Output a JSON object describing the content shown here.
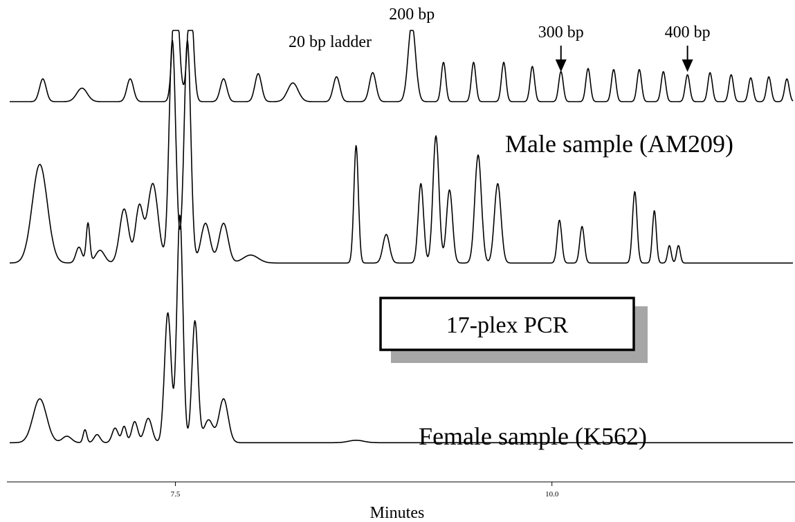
{
  "chart_data": {
    "type": "line",
    "title": "",
    "xlabel": "Minutes",
    "ylabel": "",
    "x_ticks": [
      7.5,
      10.0
    ],
    "x_tick_labels": [
      "7.5",
      "10.0"
    ],
    "xlim": [
      6.4,
      11.6
    ],
    "grid": false,
    "box_label": "17-plex PCR",
    "series": [
      {
        "name": "20 bp ladder",
        "baseline": 0.02,
        "peaks": [
          [
            6.62,
            0.22,
            0.022
          ],
          [
            6.88,
            0.13,
            0.035
          ],
          [
            7.2,
            0.22,
            0.022
          ],
          [
            7.5,
            1.0,
            0.02
          ],
          [
            7.6,
            1.0,
            0.02
          ],
          [
            7.52,
            0.22,
            0.022
          ],
          [
            7.82,
            0.22,
            0.022
          ],
          [
            8.05,
            0.27,
            0.022
          ],
          [
            8.28,
            0.18,
            0.035
          ],
          [
            8.57,
            0.24,
            0.022
          ],
          [
            8.81,
            0.28,
            0.022
          ],
          [
            9.07,
            0.75,
            0.025
          ],
          [
            9.28,
            0.38,
            0.015
          ],
          [
            9.48,
            0.38,
            0.015
          ],
          [
            9.68,
            0.38,
            0.015
          ],
          [
            9.87,
            0.34,
            0.015
          ],
          [
            10.06,
            0.29,
            0.015
          ],
          [
            10.24,
            0.32,
            0.015
          ],
          [
            10.41,
            0.31,
            0.015
          ],
          [
            10.58,
            0.31,
            0.015
          ],
          [
            10.74,
            0.29,
            0.015
          ],
          [
            10.9,
            0.26,
            0.015
          ],
          [
            11.05,
            0.28,
            0.015
          ],
          [
            11.19,
            0.26,
            0.015
          ],
          [
            11.32,
            0.23,
            0.015
          ],
          [
            11.44,
            0.24,
            0.015
          ],
          [
            11.56,
            0.22,
            0.015
          ]
        ],
        "annotations": [
          {
            "text": "200 bp",
            "x": 9.07,
            "arrow": false
          },
          {
            "text": "300 bp",
            "x": 10.06,
            "arrow": true
          },
          {
            "text": "400 bp",
            "x": 10.9,
            "arrow": true
          }
        ]
      },
      {
        "name": "Male sample (AM209)",
        "baseline": 0.02,
        "peaks": [
          [
            6.6,
            0.62,
            0.05
          ],
          [
            6.86,
            0.1,
            0.02
          ],
          [
            6.92,
            0.25,
            0.012
          ],
          [
            7.0,
            0.08,
            0.03
          ],
          [
            7.16,
            0.34,
            0.03
          ],
          [
            7.26,
            0.35,
            0.025
          ],
          [
            7.35,
            0.5,
            0.035
          ],
          [
            7.48,
            1.4,
            0.022
          ],
          [
            7.58,
            1.4,
            0.022
          ],
          [
            7.7,
            0.25,
            0.03
          ],
          [
            7.82,
            0.25,
            0.03
          ],
          [
            8.0,
            0.05,
            0.05
          ],
          [
            8.7,
            0.74,
            0.015
          ],
          [
            8.9,
            0.18,
            0.022
          ],
          [
            9.13,
            0.5,
            0.018
          ],
          [
            9.23,
            0.8,
            0.02
          ],
          [
            9.32,
            0.46,
            0.02
          ],
          [
            9.51,
            0.68,
            0.022
          ],
          [
            9.64,
            0.5,
            0.022
          ],
          [
            10.05,
            0.27,
            0.015
          ],
          [
            10.2,
            0.23,
            0.015
          ],
          [
            10.55,
            0.45,
            0.015
          ],
          [
            10.68,
            0.33,
            0.013
          ],
          [
            10.78,
            0.11,
            0.012
          ],
          [
            10.84,
            0.11,
            0.012
          ]
        ]
      },
      {
        "name": "Female sample (K562)",
        "baseline": 0.02,
        "peaks": [
          [
            6.6,
            0.27,
            0.045
          ],
          [
            6.78,
            0.04,
            0.03
          ],
          [
            6.9,
            0.08,
            0.012
          ],
          [
            6.98,
            0.05,
            0.02
          ],
          [
            7.1,
            0.09,
            0.02
          ],
          [
            7.16,
            0.1,
            0.015
          ],
          [
            7.23,
            0.13,
            0.02
          ],
          [
            7.32,
            0.15,
            0.025
          ],
          [
            7.45,
            0.8,
            0.022
          ],
          [
            7.53,
            1.4,
            0.02
          ],
          [
            7.63,
            0.75,
            0.02
          ],
          [
            7.72,
            0.14,
            0.03
          ],
          [
            7.82,
            0.27,
            0.03
          ],
          [
            8.7,
            0.015,
            0.05
          ]
        ]
      }
    ]
  }
}
